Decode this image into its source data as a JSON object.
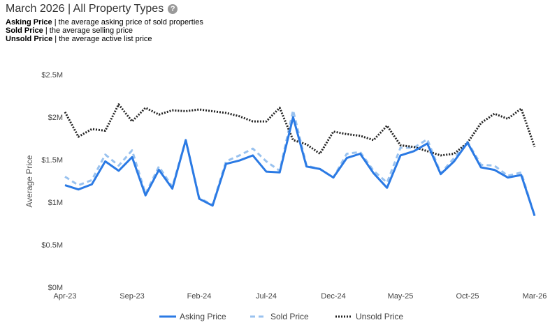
{
  "header": {
    "title": "March 2026 | All Property Types",
    "help_icon": "question-circle-icon",
    "definitions": [
      {
        "term": "Asking Price",
        "desc": " | the average asking price of sold properties"
      },
      {
        "term": "Sold Price",
        "desc": " | the average selling price"
      },
      {
        "term": "Unsold Price",
        "desc": " | the average active list price"
      }
    ]
  },
  "chart_data": {
    "type": "line",
    "ylabel": "Average Price",
    "ylim": [
      0,
      2500000
    ],
    "yticks": [
      {
        "value": 0,
        "label": "$0M"
      },
      {
        "value": 500000,
        "label": "$0.5M"
      },
      {
        "value": 1000000,
        "label": "$1M"
      },
      {
        "value": 1500000,
        "label": "$1.5M"
      },
      {
        "value": 2000000,
        "label": "$2M"
      },
      {
        "value": 2500000,
        "label": "$2.5M"
      }
    ],
    "xticks": [
      {
        "index": 0,
        "label": "Apr-23"
      },
      {
        "index": 5,
        "label": "Sep-23"
      },
      {
        "index": 10,
        "label": "Feb-24"
      },
      {
        "index": 15,
        "label": "Jul-24"
      },
      {
        "index": 20,
        "label": "Dec-24"
      },
      {
        "index": 25,
        "label": "May-25"
      },
      {
        "index": 30,
        "label": "Oct-25"
      },
      {
        "index": 35,
        "label": "Mar-26"
      }
    ],
    "grid": false,
    "legend_position": "bottom",
    "x": [
      "Apr-23",
      "May-23",
      "Jun-23",
      "Jul-23",
      "Aug-23",
      "Sep-23",
      "Oct-23",
      "Nov-23",
      "Dec-23",
      "Jan-24",
      "Feb-24",
      "Mar-24",
      "Apr-24",
      "May-24",
      "Jun-24",
      "Jul-24",
      "Aug-24",
      "Sep-24",
      "Oct-24",
      "Nov-24",
      "Dec-24",
      "Jan-25",
      "Feb-25",
      "Mar-25",
      "Apr-25",
      "May-25",
      "Jun-25",
      "Jul-25",
      "Aug-25",
      "Sep-25",
      "Oct-25",
      "Nov-25",
      "Dec-25",
      "Jan-26",
      "Feb-26",
      "Mar-26"
    ],
    "series": [
      {
        "name": "Asking Price",
        "color": "#2b7ae4",
        "style": "solid",
        "values": [
          1200000,
          1150000,
          1210000,
          1480000,
          1370000,
          1530000,
          1080000,
          1380000,
          1160000,
          1730000,
          1040000,
          960000,
          1450000,
          1490000,
          1550000,
          1360000,
          1350000,
          2000000,
          1420000,
          1390000,
          1290000,
          1520000,
          1570000,
          1340000,
          1170000,
          1550000,
          1600000,
          1690000,
          1330000,
          1480000,
          1700000,
          1410000,
          1380000,
          1290000,
          1320000,
          840000
        ]
      },
      {
        "name": "Sold Price",
        "color": "#99c2ef",
        "style": "dashed",
        "values": [
          1300000,
          1200000,
          1260000,
          1560000,
          1430000,
          1610000,
          1100000,
          1420000,
          1180000,
          1730000,
          1050000,
          970000,
          1480000,
          1550000,
          1630000,
          1480000,
          1370000,
          2080000,
          1430000,
          1390000,
          1290000,
          1570000,
          1590000,
          1370000,
          1230000,
          1640000,
          1640000,
          1740000,
          1340000,
          1520000,
          1710000,
          1440000,
          1430000,
          1310000,
          1350000,
          840000
        ]
      },
      {
        "name": "Unsold Price",
        "color": "#222222",
        "style": "dotted",
        "values": [
          2060000,
          1770000,
          1860000,
          1840000,
          2150000,
          1950000,
          2110000,
          2030000,
          2080000,
          2070000,
          2090000,
          2070000,
          2050000,
          2010000,
          1950000,
          1950000,
          2110000,
          1730000,
          1680000,
          1570000,
          1830000,
          1800000,
          1780000,
          1730000,
          1900000,
          1670000,
          1650000,
          1600000,
          1550000,
          1570000,
          1700000,
          1930000,
          2040000,
          1980000,
          2100000,
          1650000
        ]
      }
    ]
  }
}
